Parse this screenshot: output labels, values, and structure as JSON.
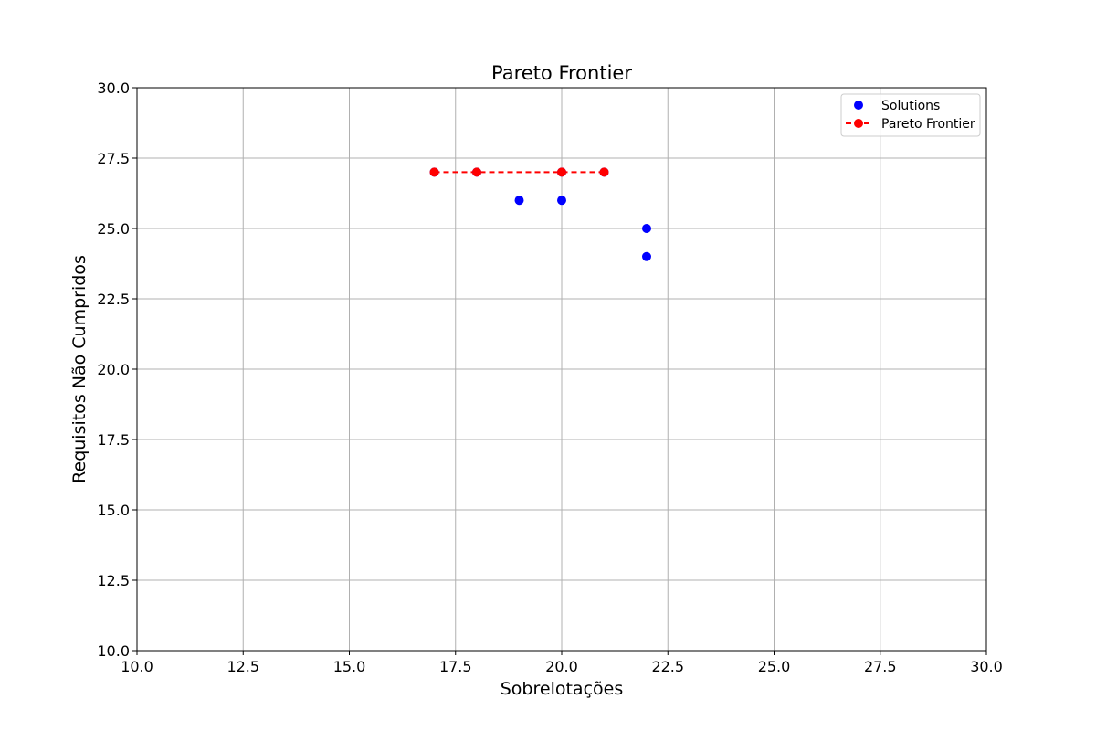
{
  "chart_data": {
    "type": "scatter",
    "title": "Pareto Frontier",
    "xlabel": "Sobrelotações",
    "ylabel": "Requisitos Não Cumpridos",
    "xlim": [
      10,
      30
    ],
    "ylim": [
      10,
      30
    ],
    "xticks": [
      "10.0",
      "12.5",
      "15.0",
      "17.5",
      "20.0",
      "22.5",
      "25.0",
      "27.5",
      "30.0"
    ],
    "yticks": [
      "10.0",
      "12.5",
      "15.0",
      "17.5",
      "20.0",
      "22.5",
      "25.0",
      "27.5",
      "30.0"
    ],
    "grid": true,
    "legend_position": "top-right",
    "series": [
      {
        "name": "Solutions",
        "kind": "scatter",
        "color": "#0000ff",
        "points": [
          {
            "x": 17,
            "y": 27
          },
          {
            "x": 18,
            "y": 27
          },
          {
            "x": 19,
            "y": 26
          },
          {
            "x": 20,
            "y": 27
          },
          {
            "x": 20,
            "y": 26
          },
          {
            "x": 21,
            "y": 27
          },
          {
            "x": 22,
            "y": 25
          },
          {
            "x": 22,
            "y": 24
          }
        ]
      },
      {
        "name": "Pareto Frontier",
        "kind": "line",
        "line_style": "dashed",
        "color": "#ff0000",
        "points": [
          {
            "x": 17,
            "y": 27
          },
          {
            "x": 18,
            "y": 27
          },
          {
            "x": 20,
            "y": 27
          },
          {
            "x": 21,
            "y": 27
          }
        ]
      }
    ]
  }
}
